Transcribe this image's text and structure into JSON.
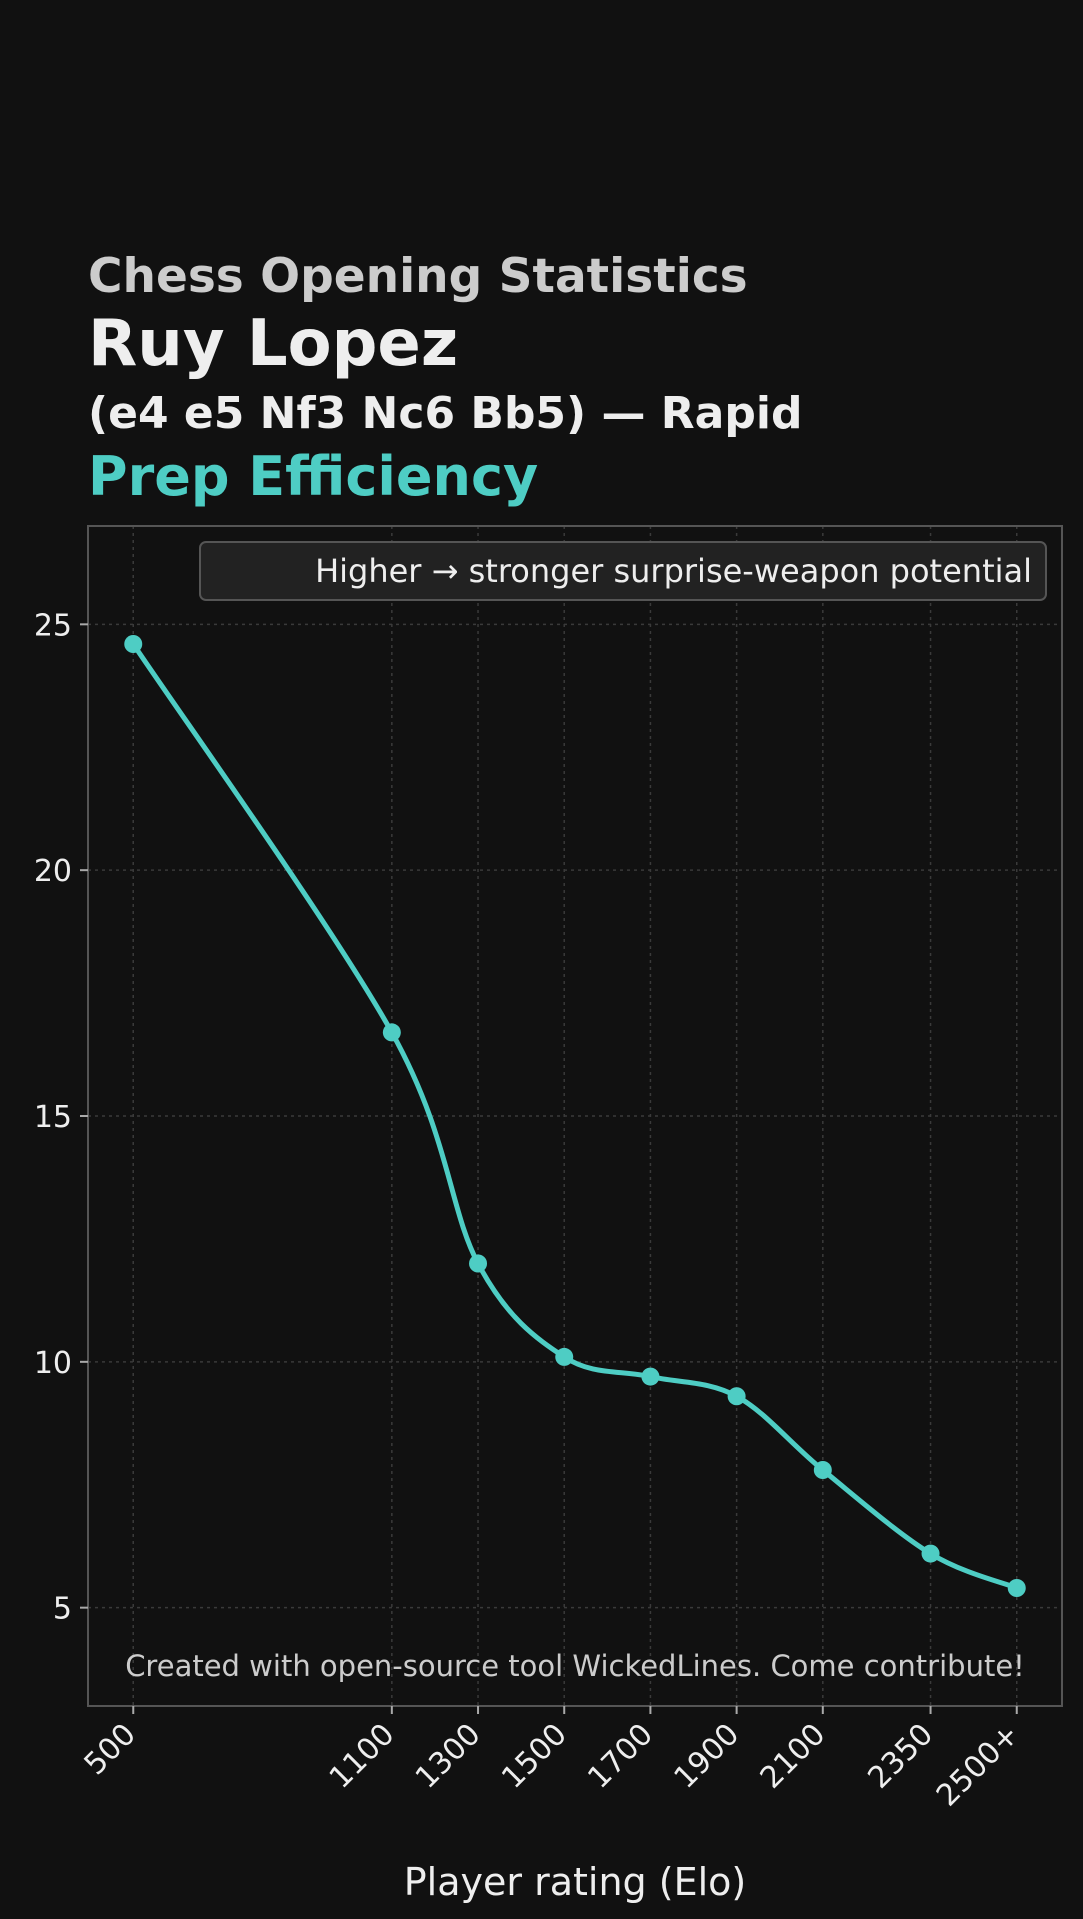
{
  "header": {
    "supertitle": "Chess Opening Statistics",
    "title": "Ruy Lopez",
    "subtitle": "(e4 e5 Nf3 Nc6 Bb5) — Rapid",
    "metric": "Prep Efficiency"
  },
  "colors": {
    "background": "#111111",
    "accent": "#4ecdc4",
    "grid": "#3a3a3a",
    "frame": "#555555"
  },
  "chart_data": {
    "type": "line",
    "x": [
      500,
      1100,
      1300,
      1500,
      1700,
      1900,
      2100,
      2350,
      2550
    ],
    "xticklabels": [
      "500",
      "1100",
      "1300",
      "1500",
      "1700",
      "1900",
      "2100",
      "2350",
      "2500+"
    ],
    "values": [
      24.6,
      16.7,
      12.0,
      10.1,
      9.7,
      9.3,
      7.8,
      6.1,
      5.4
    ],
    "xlim": [
      395,
      2655
    ],
    "ylim": [
      3.0,
      27.0
    ],
    "yticks": [
      5,
      10,
      15,
      20,
      25
    ],
    "xlabel": "Player rating (Elo)",
    "ylabel": "",
    "legend": {
      "text": "Higher → stronger surprise-weapon potential",
      "placement": "top-right"
    },
    "credit": "Created with open-source tool WickedLines. Come contribute!",
    "grid": true,
    "smooth": true
  }
}
